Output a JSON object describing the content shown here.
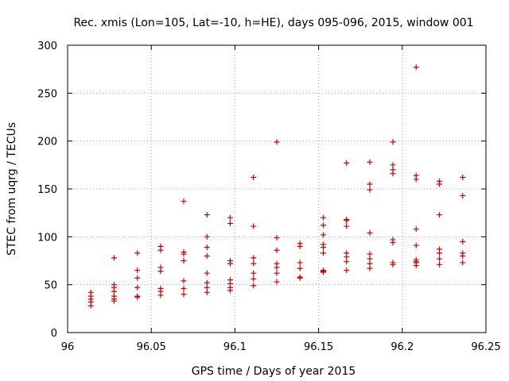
{
  "chart_data": {
    "type": "scatter",
    "title": "Rec. xmis (Lon=105, Lat=-10, h=HE), days 095-096, 2015, window 001",
    "xlabel": "GPS time / Days of year 2015",
    "ylabel": "STEC from uqrg / TECUs",
    "xlim": [
      96,
      96.25
    ],
    "ylim": [
      0,
      300
    ],
    "xticks": [
      "96",
      "96.05",
      "96.1",
      "96.15",
      "96.2",
      "96.25"
    ],
    "yticks": [
      "0",
      "50",
      "100",
      "150",
      "200",
      "250",
      "300"
    ],
    "grid": true,
    "marker": "+",
    "color": "#cc0000",
    "series": [
      {
        "x": [
          96.0139,
          96.0139,
          96.0139,
          96.0139,
          96.0139,
          96.0278,
          96.0278,
          96.0278,
          96.0278,
          96.0278,
          96.0278,
          96.0278,
          96.0417,
          96.0417,
          96.0417,
          96.0417,
          96.0417,
          96.0417,
          96.0556,
          96.0556,
          96.0556,
          96.0556,
          96.0556,
          96.0556,
          96.0556,
          96.0694,
          96.0694,
          96.0694,
          96.0694,
          96.0694,
          96.0694,
          96.0694,
          96.0833,
          96.0833,
          96.0833,
          96.0833,
          96.0833,
          96.0833,
          96.0833,
          96.0833,
          96.0972,
          96.0972,
          96.0972,
          96.0972,
          96.0972,
          96.0972,
          96.0972,
          96.0972,
          96.1111,
          96.1111,
          96.1111,
          96.1111,
          96.1111,
          96.1111,
          96.1111,
          96.125,
          96.125,
          96.125,
          96.125,
          96.125,
          96.125,
          96.125,
          96.1389,
          96.1389,
          96.1389,
          96.1389,
          96.1389,
          96.1389,
          96.1528,
          96.1528,
          96.1528,
          96.1528,
          96.1528,
          96.1528,
          96.1528,
          96.1528,
          96.1528,
          96.1528,
          96.1667,
          96.1667,
          96.1667,
          96.1667,
          96.1667,
          96.1667,
          96.1667,
          96.1667,
          96.1806,
          96.1806,
          96.1806,
          96.1806,
          96.1806,
          96.1806,
          96.1806,
          96.1806,
          96.1944,
          96.1944,
          96.1944,
          96.1944,
          96.1944,
          96.1944,
          96.1944,
          96.1944,
          96.2083,
          96.2083,
          96.2083,
          96.2083,
          96.2083,
          96.2083,
          96.2083,
          96.2083,
          96.2083,
          96.2222,
          96.2222,
          96.2222,
          96.2222,
          96.2222,
          96.2222,
          96.2222,
          96.2361,
          96.2361,
          96.2361,
          96.2361,
          96.2361,
          96.2361
        ],
        "y": [
          42,
          38,
          35,
          32,
          28,
          78,
          50,
          47,
          43,
          38,
          35,
          33,
          83,
          65,
          57,
          47,
          38,
          37,
          90,
          86,
          68,
          64,
          46,
          43,
          39,
          137,
          84,
          82,
          75,
          54,
          46,
          40,
          123,
          100,
          89,
          80,
          62,
          52,
          47,
          42,
          120,
          114,
          75,
          72,
          55,
          51,
          47,
          44,
          162,
          111,
          78,
          72,
          62,
          56,
          49,
          199,
          99,
          86,
          72,
          68,
          62,
          53,
          93,
          90,
          73,
          67,
          58,
          57,
          120,
          112,
          102,
          92,
          89,
          83,
          65,
          64,
          64,
          63,
          177,
          118,
          117,
          111,
          83,
          79,
          74,
          65,
          178,
          155,
          149,
          104,
          82,
          77,
          72,
          67,
          199,
          175,
          170,
          166,
          97,
          94,
          73,
          71,
          277,
          164,
          160,
          108,
          91,
          76,
          74,
          73,
          70,
          158,
          155,
          123,
          87,
          83,
          77,
          71,
          162,
          143,
          95,
          83,
          80,
          73
        ]
      }
    ]
  }
}
